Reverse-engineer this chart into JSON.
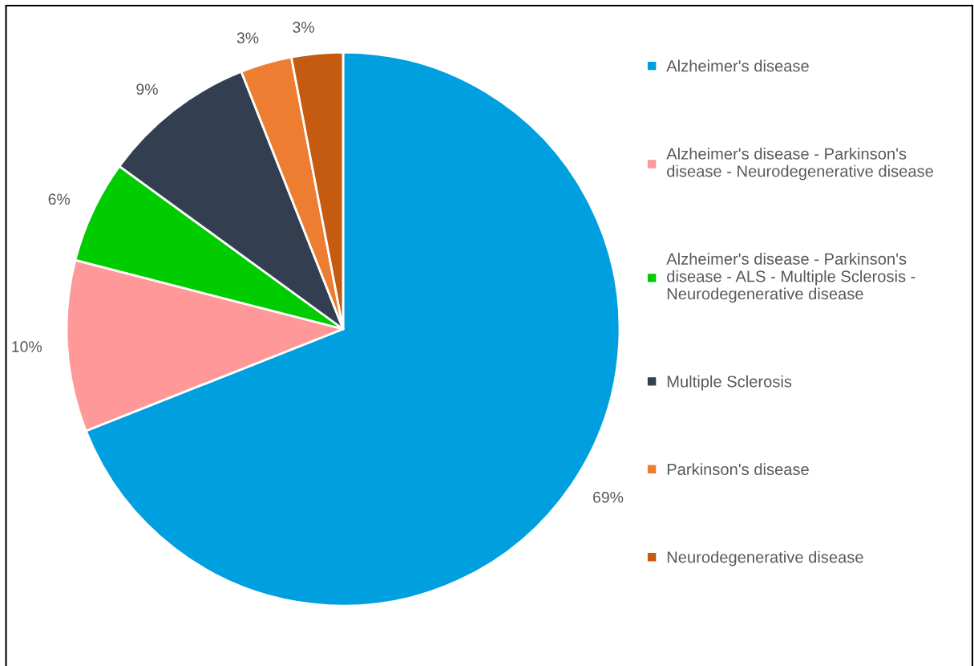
{
  "chart_data": {
    "type": "pie",
    "categories": [
      "Alzheimer's disease",
      "Alzheimer's disease - Parkinson's disease - Neurodegenerative disease",
      "Alzheimer's disease - Parkinson's disease - ALS - Multiple Sclerosis - Neurodegenerative disease",
      "Multiple Sclerosis",
      "Parkinson's disease",
      "Neurodegenerative disease"
    ],
    "values": [
      69,
      10,
      6,
      9,
      3,
      3
    ],
    "colors": [
      "#009fdf",
      "#ff9999",
      "#00cc00",
      "#333f50",
      "#ed7d31",
      "#c55a11"
    ],
    "value_labels": [
      "69%",
      "10%",
      "6%",
      "9%",
      "3%",
      "3%"
    ],
    "legend": "right"
  }
}
